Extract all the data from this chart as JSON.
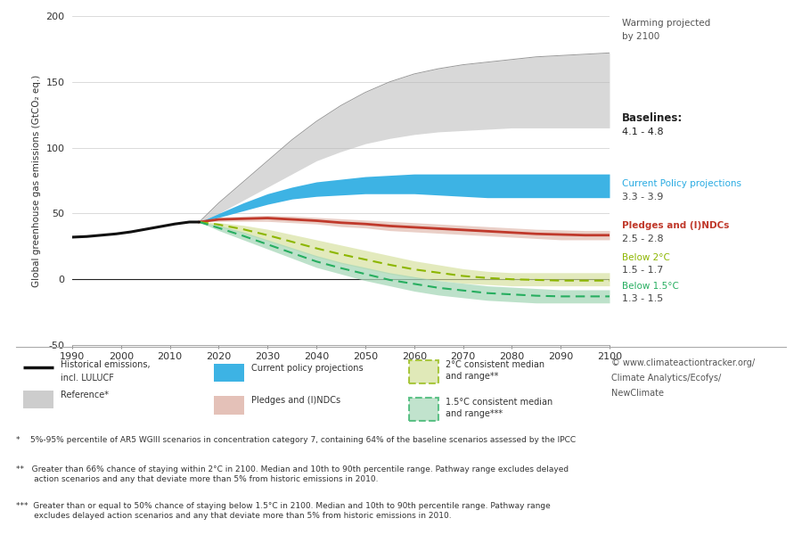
{
  "years_hist": [
    1990,
    1993,
    1996,
    1999,
    2002,
    2005,
    2008,
    2011,
    2014,
    2016
  ],
  "hist_values": [
    32,
    32.5,
    33.5,
    34.5,
    36,
    38,
    40,
    42,
    43.5,
    43.5
  ],
  "years_proj": [
    2016,
    2020,
    2025,
    2030,
    2035,
    2040,
    2045,
    2050,
    2055,
    2060,
    2065,
    2070,
    2075,
    2080,
    2085,
    2090,
    2095,
    2100
  ],
  "ref_upper": [
    43.5,
    58,
    74,
    90,
    106,
    120,
    132,
    142,
    150,
    156,
    160,
    163,
    165,
    167,
    169,
    170,
    171,
    172
  ],
  "ref_lower": [
    43.5,
    50,
    60,
    70,
    80,
    90,
    97,
    103,
    107,
    110,
    112,
    113,
    114,
    115,
    115,
    115,
    115,
    115
  ],
  "cp_upper": [
    43.5,
    50,
    58,
    65,
    70,
    74,
    76,
    78,
    79,
    80,
    80,
    80,
    80,
    80,
    80,
    80,
    80,
    80
  ],
  "cp_lower": [
    43.5,
    47,
    52,
    57,
    61,
    63,
    64,
    65,
    65,
    65,
    64,
    63,
    62,
    62,
    62,
    62,
    62,
    62
  ],
  "ndcs_upper": [
    43.5,
    47,
    48,
    48.5,
    48,
    47,
    46,
    45,
    44,
    43,
    42,
    41,
    40,
    39,
    38,
    37.5,
    37,
    37
  ],
  "ndcs_lower": [
    43.5,
    44,
    44,
    44,
    43,
    42,
    40,
    39,
    37,
    36,
    35,
    34,
    33,
    32,
    31,
    30,
    30,
    30
  ],
  "ndcs_median": [
    43.5,
    45.5,
    46,
    46.5,
    45.5,
    44.5,
    43,
    42,
    40.5,
    39.5,
    38.5,
    37.5,
    36.5,
    35.5,
    34.5,
    34,
    33.5,
    33.5
  ],
  "below2_upper": [
    43.5,
    43,
    41,
    38,
    34,
    30,
    26,
    22,
    18,
    14,
    11,
    8,
    6,
    5,
    5,
    5,
    5,
    5
  ],
  "below2_lower": [
    43.5,
    40,
    35,
    29,
    23,
    17,
    12,
    8,
    4,
    1,
    -1,
    -3,
    -4,
    -5,
    -5,
    -5,
    -5,
    -5
  ],
  "below2_median": [
    43.5,
    41.5,
    38,
    33.5,
    28.5,
    23.5,
    19,
    15,
    11,
    7.5,
    5,
    2.5,
    1,
    0,
    -0.5,
    -1,
    -1,
    -1
  ],
  "below15_upper": [
    43.5,
    41,
    36,
    30,
    24,
    18,
    13,
    9,
    5,
    2,
    -1,
    -3,
    -5,
    -6,
    -7,
    -8,
    -8,
    -8
  ],
  "below15_lower": [
    43.5,
    37,
    30,
    23,
    16,
    9,
    4,
    -1,
    -5,
    -9,
    -12,
    -14,
    -16,
    -17,
    -18,
    -18,
    -18,
    -18
  ],
  "below15_median": [
    43.5,
    39,
    33,
    26.5,
    20,
    13.5,
    8.5,
    4,
    -0.5,
    -3.5,
    -6.5,
    -8.5,
    -10.5,
    -11.5,
    -12.5,
    -13,
    -13,
    -13
  ],
  "ylabel": "Global greenhouse gas emissions (GtCO₂ eq.)",
  "ylim": [
    -50,
    200
  ],
  "yticks": [
    -50,
    0,
    50,
    100,
    150,
    200
  ],
  "xlim": [
    1990,
    2100
  ],
  "xticks": [
    1990,
    2000,
    2010,
    2020,
    2030,
    2040,
    2050,
    2060,
    2070,
    2080,
    2090,
    2100
  ],
  "color_ref": "#b8b8b8",
  "color_ref_edge": "#999999",
  "color_cp_fill": "#29abe2",
  "color_ndcs_fill": "#d9a89a",
  "color_ndcs_line": "#c0392b",
  "color_below2_fill": "#d4e09b",
  "color_below2_line": "#8db600",
  "color_below15_fill": "#a8d8b9",
  "color_below15_line": "#27ae60",
  "color_hist": "#111111",
  "footnote1": "*    5%-95% percentile of AR5 WGIII scenarios in concentration category 7, containing 64% of the baseline scenarios assessed by the IPCC",
  "footnote2": "**   Greater than 66% chance of staying within 2°C in 2100. Median and 10th to 90th percentile range. Pathway range excludes delayed\n       action scenarios and any that deviate more than 5% from historic emissions in 2010.",
  "footnote3": "***  Greater than or equal to 50% chance of staying below 1.5°C in 2100. Median and 10th to 90th percentile range. Pathway range\n       excludes delayed action scenarios and any that deviate more than 5% from historic emissions in 2010."
}
